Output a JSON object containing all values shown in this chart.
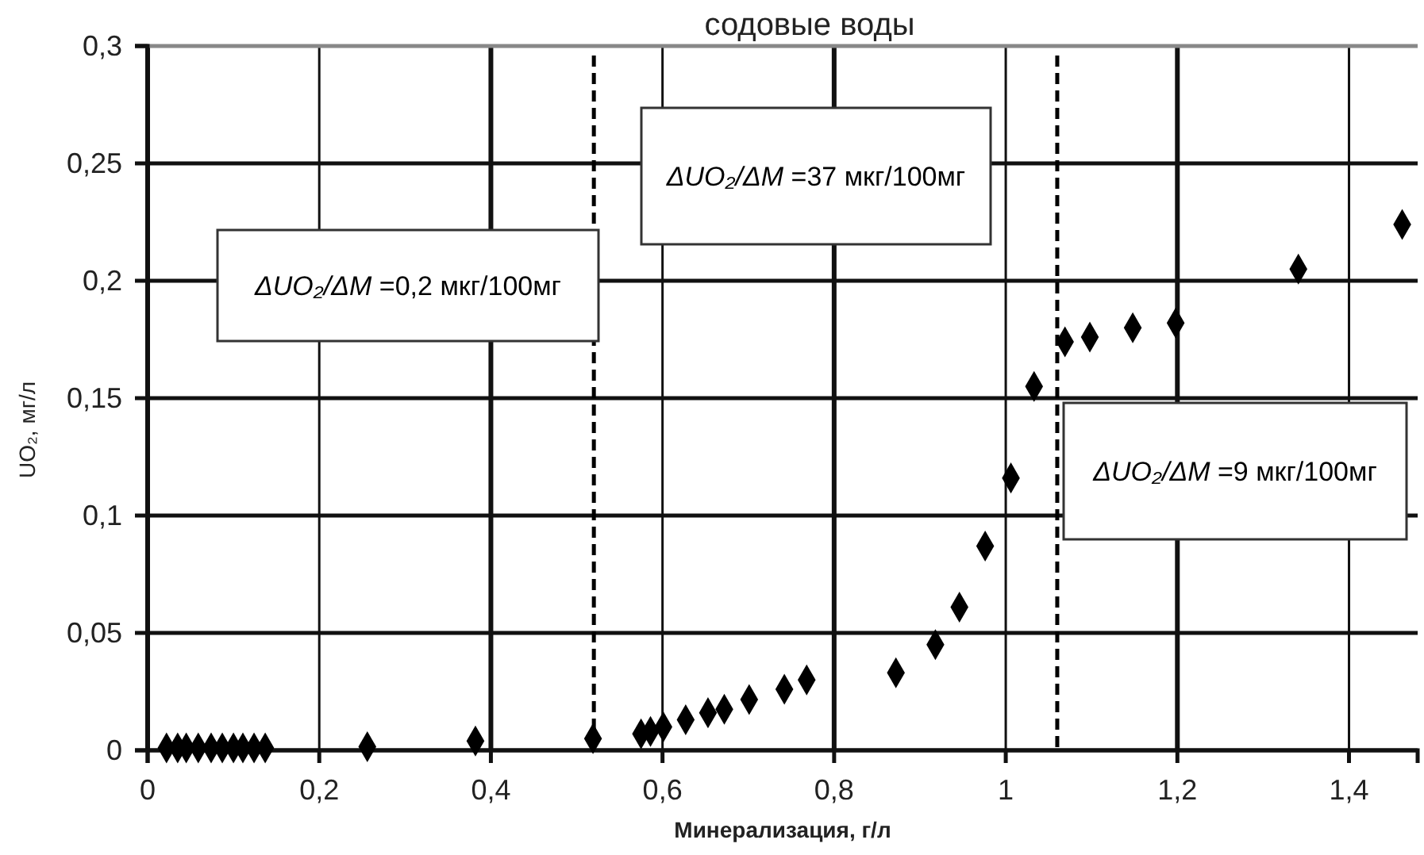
{
  "chart_data": {
    "type": "scatter",
    "title": "содовые воды",
    "xlabel": "Минерализация, г/л",
    "ylabel": "UO₂, мг/л",
    "x": [
      0.022,
      0.035,
      0.045,
      0.059,
      0.074,
      0.087,
      0.1,
      0.111,
      0.124,
      0.137,
      0.256,
      0.382,
      0.519,
      0.575,
      0.586,
      0.601,
      0.627,
      0.653,
      0.672,
      0.701,
      0.742,
      0.768,
      0.872,
      0.918,
      0.946,
      0.976,
      1.006,
      1.033,
      1.069,
      1.098,
      1.148,
      1.198,
      1.341,
      1.462
    ],
    "series": [
      {
        "color": "#000000",
        "values": [
          0.001,
          0.001,
          0.001,
          0.001,
          0.001,
          0.001,
          0.001,
          0.001,
          0.001,
          0.001,
          0.0015,
          0.004,
          0.005,
          0.007,
          0.008,
          0.01,
          0.013,
          0.016,
          0.0175,
          0.0216,
          0.026,
          0.03,
          0.033,
          0.045,
          0.061,
          0.087,
          0.116,
          0.155,
          0.174,
          0.176,
          0.18,
          0.182,
          0.205,
          0.224
        ]
      }
    ],
    "xlim": [
      0,
      1.48
    ],
    "xticks": [
      0,
      {
        "value": 0.2,
        "label": "0,2"
      },
      {
        "value": 0.4,
        "label": "0,4"
      },
      {
        "value": 0.6,
        "label": "0,6"
      },
      {
        "value": 0.8,
        "label": "0,8"
      },
      1,
      {
        "value": 1.2,
        "label": "1,2"
      },
      {
        "value": 1.4,
        "label": "1,4"
      }
    ],
    "ylim": [
      0,
      0.3
    ],
    "yticks": [
      0,
      {
        "value": 0.05,
        "label": "0,05"
      },
      {
        "value": 0.1,
        "label": "0,1"
      },
      {
        "value": 0.15,
        "label": "0,15"
      },
      {
        "value": 0.2,
        "label": "0,2"
      },
      {
        "value": 0.25,
        "label": "0,25"
      },
      {
        "value": 0.3,
        "label": "0,3"
      }
    ],
    "grid": true,
    "marker": "diamond",
    "ref_lines": [
      {
        "axis": "x",
        "value": 0.52,
        "line_style": "dashed",
        "color": "#000000"
      },
      {
        "axis": "x",
        "value": 1.06,
        "line_style": "dashed",
        "color": "#000000"
      }
    ],
    "annotations": [
      "ΔUO₂/ΔM =0,2 мкг/100мг",
      "ΔUO₂/ΔM =37 мкг/100мг",
      "ΔUO₂/ΔM =9 мкг/100мг"
    ]
  }
}
